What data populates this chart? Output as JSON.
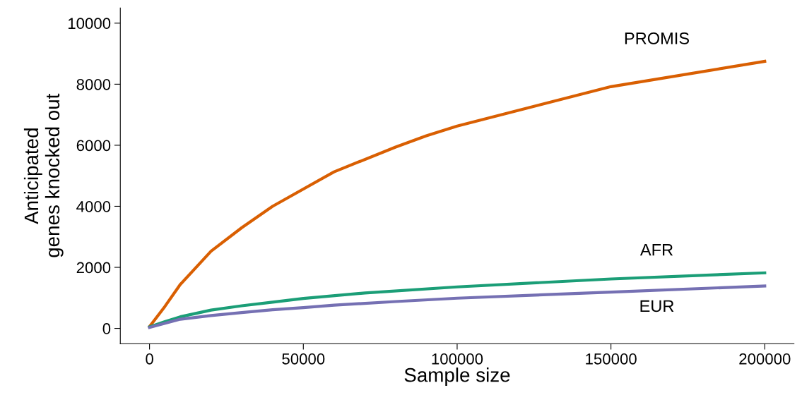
{
  "chart_data": {
    "type": "line",
    "xlabel": "Sample size",
    "ylabel": "Anticipated\ngenes knocked out",
    "xlim": [
      -9500,
      209500
    ],
    "ylim": [
      -500,
      10500
    ],
    "xticks": [
      0,
      50000,
      100000,
      150000,
      200000
    ],
    "yticks": [
      0,
      2000,
      4000,
      6000,
      8000,
      10000
    ],
    "grid": false,
    "legend": false,
    "marker": "none",
    "line_style": "solid",
    "series": [
      {
        "name": "PROMIS",
        "color": "#d95f02",
        "x": [
          0,
          5000,
          10000,
          20000,
          30000,
          40000,
          60000,
          80000,
          90000,
          100000,
          150000,
          200000
        ],
        "values": [
          60,
          720,
          1440,
          2530,
          3300,
          4000,
          5130,
          5940,
          6310,
          6630,
          7920,
          8750
        ]
      },
      {
        "name": "AFR",
        "color": "#1b9e77",
        "x": [
          0,
          5000,
          10000,
          20000,
          30000,
          40000,
          50000,
          70000,
          100000,
          150000,
          200000
        ],
        "values": [
          50,
          220,
          380,
          600,
          740,
          860,
          980,
          1160,
          1360,
          1620,
          1820
        ]
      },
      {
        "name": "EUR",
        "color": "#7570b3",
        "x": [
          0,
          10000,
          20000,
          30000,
          40000,
          50000,
          60000,
          80000,
          100000,
          150000,
          200000
        ],
        "values": [
          30,
          300,
          420,
          520,
          610,
          680,
          760,
          880,
          990,
          1190,
          1390
        ]
      }
    ]
  }
}
